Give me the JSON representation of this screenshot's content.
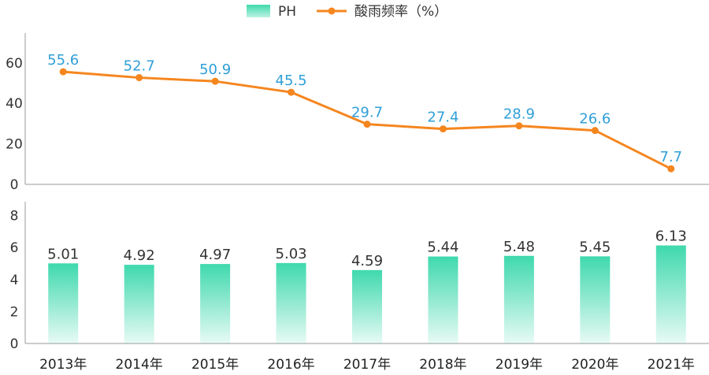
{
  "chart_data": {
    "type": "bar+line",
    "categories": [
      "2013年",
      "2014年",
      "2015年",
      "2016年",
      "2017年",
      "2018年",
      "2019年",
      "2020年",
      "2021年"
    ],
    "series": [
      {
        "name": "PH",
        "type": "bar",
        "values": [
          5.01,
          4.92,
          4.97,
          5.03,
          4.59,
          5.44,
          5.48,
          5.45,
          6.13
        ],
        "labels": [
          "5.01",
          "4.92",
          "4.97",
          "5.03",
          "4.59",
          "5.44",
          "5.48",
          "5.45",
          "6.13"
        ],
        "color": "#3fd9ad",
        "ylim": [
          0,
          8
        ],
        "yticks": [
          "0",
          "2",
          "4",
          "6",
          "8"
        ]
      },
      {
        "name": "酸雨频率（%）",
        "type": "line",
        "values": [
          55.6,
          52.7,
          50.9,
          45.5,
          29.7,
          27.4,
          28.9,
          26.6,
          7.7
        ],
        "labels": [
          "55.6",
          "52.7",
          "50.9",
          "45.5",
          "29.7",
          "27.4",
          "28.9",
          "26.6",
          "7.7"
        ],
        "color": "#f5861f",
        "label_color": "#2f9fd8",
        "ylim": [
          0,
          70
        ],
        "yticks": [
          "0",
          "20",
          "40",
          "60"
        ]
      }
    ],
    "legend": {
      "position": "top-center",
      "ph": "PH",
      "rate": "酸雨频率（%）"
    }
  }
}
